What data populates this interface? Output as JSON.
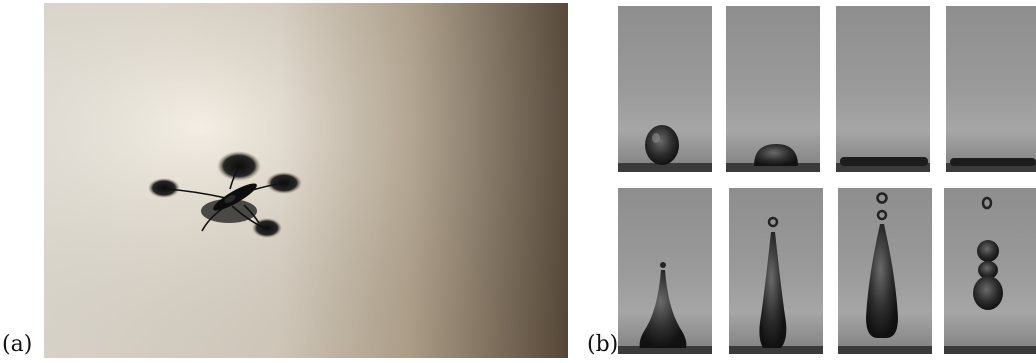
{
  "figure": {
    "panels": [
      {
        "label": "(a)",
        "content": "water-strider-photo"
      },
      {
        "label": "(b)",
        "content": "droplet-sequence"
      }
    ]
  },
  "colors": {
    "photo_bg_light": "#f3ecdf",
    "photo_bg_mid": "#cdbfa8",
    "photo_bg_dark": "#6a5a47",
    "frame_gray": "#8a8a8a",
    "frame_light": "#a3a3a3",
    "frame_dark": "#202020"
  },
  "droplet_frames": [
    {
      "row": 1,
      "col": 1,
      "shape": "sphere"
    },
    {
      "row": 1,
      "col": 2,
      "shape": "dome"
    },
    {
      "row": 1,
      "col": 3,
      "shape": "flat-pancake"
    },
    {
      "row": 1,
      "col": 4,
      "shape": "flat-pancake-thin"
    },
    {
      "row": 2,
      "col": 1,
      "shape": "short-jet"
    },
    {
      "row": 2,
      "col": 2,
      "shape": "tall-jet-one-drop"
    },
    {
      "row": 2,
      "col": 3,
      "shape": "column-two-drops"
    },
    {
      "row": 2,
      "col": 4,
      "shape": "detached-beads"
    }
  ]
}
